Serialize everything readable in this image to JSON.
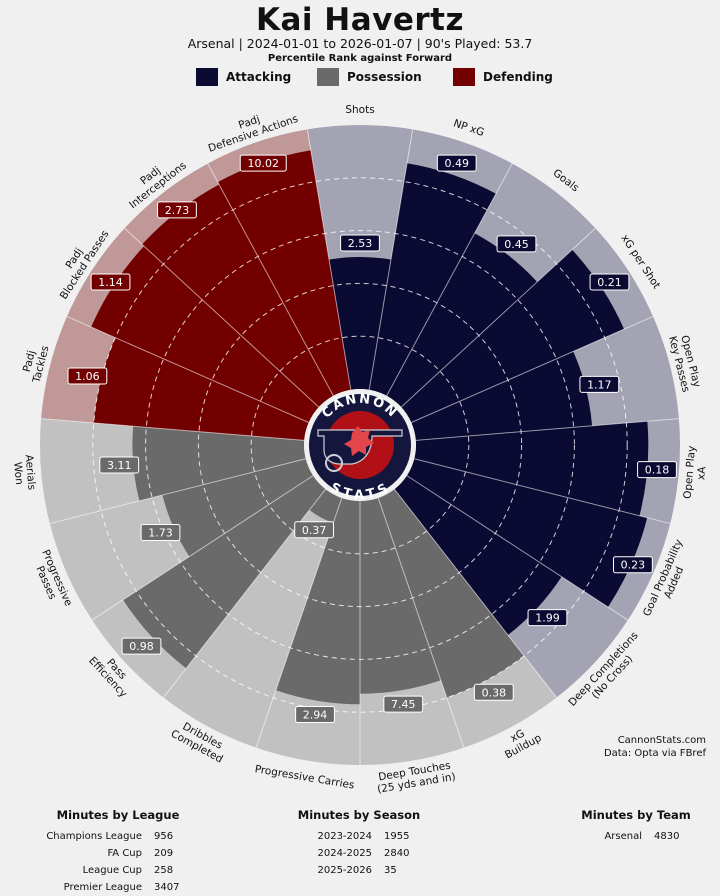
{
  "header": {
    "title": "Kai Havertz",
    "subtitle": "Arsenal | 2024-01-01 to 2026-01-07 | 90's Played: 53.7",
    "rank_line": "Percentile Rank against Forward"
  },
  "legend": [
    {
      "label": "Attacking",
      "color": "#0a0a33"
    },
    {
      "label": "Possession",
      "color": "#6a6a6a"
    },
    {
      "label": "Defending",
      "color": "#730000"
    }
  ],
  "logo": {
    "top": "CANNON",
    "bottom": "STATS"
  },
  "credit": {
    "line1": "CannonStats.com",
    "line2": "Data: Opta via FBref"
  },
  "chart_data": {
    "type": "polar-bar",
    "scale": "percentile",
    "rlim": [
      0,
      100
    ],
    "categories": [
      {
        "name": "Shots",
        "lines": [
          "Shots"
        ],
        "group": "Attacking",
        "value": 2.53,
        "percentile": 50
      },
      {
        "name": "NP xG",
        "lines": [
          "NP xG"
        ],
        "group": "Attacking",
        "value": 0.49,
        "percentile": 87
      },
      {
        "name": "Goals",
        "lines": [
          "Goals"
        ],
        "group": "Attacking",
        "value": 0.45,
        "percentile": 70
      },
      {
        "name": "xG per Shot",
        "lines": [
          "xG per Shot"
        ],
        "group": "Attacking",
        "value": 0.21,
        "percentile": 88
      },
      {
        "name": "Open Play Key Passes",
        "lines": [
          "Open Play",
          "Key Passes"
        ],
        "group": "Attacking",
        "value": 1.17,
        "percentile": 67
      },
      {
        "name": "Open Play xA",
        "lines": [
          "Open Play",
          "xA"
        ],
        "group": "Attacking",
        "value": 0.18,
        "percentile": 88
      },
      {
        "name": "Goal Probability Added",
        "lines": [
          "Goal Probability",
          "Added"
        ],
        "group": "Attacking",
        "value": 0.23,
        "percentile": 91
      },
      {
        "name": "Deep Completions (No Cross)",
        "lines": [
          "Deep Completions",
          "(No Cross)"
        ],
        "group": "Attacking",
        "value": 1.99,
        "percentile": 70
      },
      {
        "name": "xG Buildup",
        "lines": [
          "xG",
          "Buildup"
        ],
        "group": "Possession",
        "value": 0.38,
        "percentile": 80
      },
      {
        "name": "Deep Touches (25 yds and in)",
        "lines": [
          "Deep Touches",
          "(25 yds and in)"
        ],
        "group": "Possession",
        "value": 7.45,
        "percentile": 73
      },
      {
        "name": "Progressive Carries",
        "lines": [
          "Progressive Carries"
        ],
        "group": "Possession",
        "value": 2.94,
        "percentile": 77
      },
      {
        "name": "Dribbles Completed",
        "lines": [
          "Dribbles",
          "Completed"
        ],
        "group": "Possession",
        "value": 0.37,
        "percentile": 10
      },
      {
        "name": "Pass Efficiency",
        "lines": [
          "Pass",
          "Efficiency"
        ],
        "group": "Possession",
        "value": 0.98,
        "percentile": 86
      },
      {
        "name": "Progressive Passes",
        "lines": [
          "Progressive",
          "Passes"
        ],
        "group": "Possession",
        "value": 1.73,
        "percentile": 56
      },
      {
        "name": "Aerials Won",
        "lines": [
          "Aerials",
          "Won"
        ],
        "group": "Possession",
        "value": 3.11,
        "percentile": 65
      },
      {
        "name": "Padj Tackles",
        "lines": [
          "Padj",
          "Tackles"
        ],
        "group": "Defending",
        "value": 1.06,
        "percentile": 80
      },
      {
        "name": "Padj Blocked Passes",
        "lines": [
          "Padj",
          "Blocked Passes"
        ],
        "group": "Defending",
        "value": 1.14,
        "percentile": 90
      },
      {
        "name": "Padj Interceptions",
        "lines": [
          "Padj",
          "Interceptions"
        ],
        "group": "Defending",
        "value": 2.73,
        "percentile": 91
      },
      {
        "name": "Padj Defensive Actions",
        "lines": [
          "Padj",
          "Defensive Actions"
        ],
        "group": "Defending",
        "value": 10.02,
        "percentile": 92
      }
    ],
    "group_colors": {
      "Attacking": {
        "bar": "#0a0a33",
        "bg": "#a3a3b3"
      },
      "Possession": {
        "bar": "#6a6a6a",
        "bg": "#c1c1c1"
      },
      "Defending": {
        "bar": "#730000",
        "bg": "#c09898"
      }
    },
    "gridlines": [
      20,
      40,
      60,
      80
    ]
  },
  "tables": [
    {
      "title": "Minutes by League",
      "rows": [
        {
          "label": "Champions League",
          "value": "956"
        },
        {
          "label": "FA Cup",
          "value": "209"
        },
        {
          "label": "League Cup",
          "value": "258"
        },
        {
          "label": "Premier League",
          "value": "3407"
        }
      ]
    },
    {
      "title": "Minutes by Season",
      "rows": [
        {
          "label": "2023-2024",
          "value": "1955"
        },
        {
          "label": "2024-2025",
          "value": "2840"
        },
        {
          "label": "2025-2026",
          "value": "35"
        }
      ]
    },
    {
      "title": "Minutes by Team",
      "rows": [
        {
          "label": "Arsenal",
          "value": "4830"
        }
      ]
    }
  ]
}
